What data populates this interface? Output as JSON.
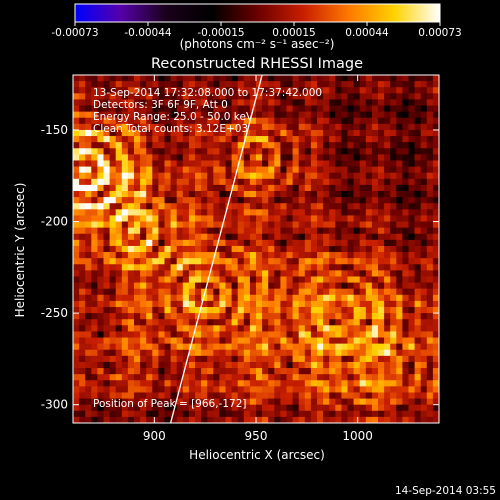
{
  "chart_data": {
    "type": "heatmap",
    "title": "Reconstructed RHESSI Image",
    "xlabel": "Heliocentric X (arcsec)",
    "ylabel": "Heliocentric Y (arcsec)",
    "xlim": [
      860,
      1040
    ],
    "ylim": [
      -310,
      -120
    ],
    "x_ticks": [
      900,
      950,
      1000
    ],
    "y_ticks": [
      -150,
      -200,
      -250,
      -300
    ],
    "colorbar": {
      "min": -0.00073,
      "max": 0.00073,
      "ticks": [
        "-0.00073",
        "-0.00044",
        "-0.00015",
        "0.00015",
        "0.00044",
        "0.00073"
      ],
      "unit_label": "(photons cm⁻² s⁻¹ asec⁻²)",
      "colormap": [
        "#0000ff",
        "#5500aa",
        "#1a001a",
        "#000000",
        "#6a0000",
        "#c81e00",
        "#ff7800",
        "#ffd200",
        "#ffffff"
      ]
    },
    "annotations": [
      "13-Sep-2014 17:32:08.000 to 17:37:42.000",
      "Detectors: 3F 6F 9F, Att 0",
      "Energy Range: 25.0 - 50.0 keV",
      "Clean     Total counts: 3.12E+03"
    ],
    "peak_label": "Position of Peak = [966,-172]",
    "limb_line": {
      "x1": 908,
      "y1": -310,
      "x2": 953,
      "y2": -120
    },
    "grid": false
  },
  "timestamp": "14-Sep-2014 03:55"
}
